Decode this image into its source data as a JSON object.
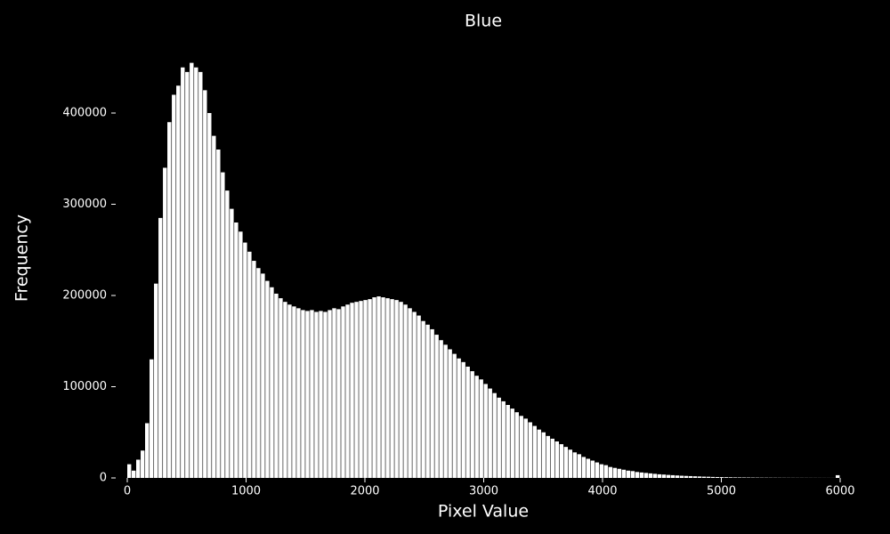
{
  "chart_data": {
    "type": "histogram",
    "title": "Blue",
    "xlabel": "Pixel Value",
    "ylabel": "Frequency",
    "color": "#ffffff",
    "background": "#000000",
    "bins": [
      0,
      37.5,
      75,
      112.5,
      150,
      187.5,
      225,
      262.5,
      300,
      337.5,
      375,
      412.5,
      450,
      487.5,
      525,
      562.5,
      600,
      637.5,
      675,
      712.5,
      750,
      787.5,
      825,
      862.5,
      900,
      937.5,
      975,
      1012.5,
      1050,
      1087.5,
      1125,
      1162.5,
      1200,
      1237.5,
      1275,
      1312.5,
      1350,
      1387.5,
      1425,
      1462.5,
      1500,
      1537.5,
      1575,
      1612.5,
      1650,
      1687.5,
      1725,
      1762.5,
      1800,
      1837.5,
      1875,
      1912.5,
      1950,
      1987.5,
      2025,
      2062.5,
      2100,
      2137.5,
      2175,
      2212.5,
      2250,
      2287.5,
      2325,
      2362.5,
      2400,
      2437.5,
      2475,
      2512.5,
      2550,
      2587.5,
      2625,
      2662.5,
      2700,
      2737.5,
      2775,
      2812.5,
      2850,
      2887.5,
      2925,
      2962.5,
      3000,
      3037.5,
      3075,
      3112.5,
      3150,
      3187.5,
      3225,
      3262.5,
      3300,
      3337.5,
      3375,
      3412.5,
      3450,
      3487.5,
      3525,
      3562.5,
      3600,
      3637.5,
      3675,
      3712.5,
      3750,
      3787.5,
      3825,
      3862.5,
      3900,
      3937.5,
      3975,
      4012.5,
      4050,
      4087.5,
      4125,
      4162.5,
      4200,
      4237.5,
      4275,
      4312.5,
      4350,
      4387.5,
      4425,
      4462.5,
      4500,
      4537.5,
      4575,
      4612.5,
      4650,
      4687.5,
      4725,
      4762.5,
      4800,
      4837.5,
      4875,
      4912.5,
      4950,
      4987.5,
      5025,
      5062.5,
      5100,
      5137.5,
      5175,
      5212.5,
      5250,
      5287.5,
      5325,
      5362.5,
      5400,
      5437.5,
      5475,
      5512.5,
      5550,
      5587.5,
      5625,
      5662.5,
      5700,
      5737.5,
      5775,
      5812.5,
      5850,
      5887.5,
      5925,
      5962.5,
      6000
    ],
    "counts": [
      15000,
      8000,
      20000,
      30000,
      60000,
      130000,
      213000,
      285000,
      340000,
      390000,
      420000,
      430000,
      450000,
      445000,
      455000,
      450000,
      445000,
      425000,
      400000,
      375000,
      360000,
      335000,
      315000,
      295000,
      280000,
      270000,
      258000,
      248000,
      238000,
      230000,
      224000,
      216000,
      209000,
      202000,
      197000,
      193000,
      190000,
      188000,
      186000,
      184000,
      183000,
      184000,
      182000,
      183000,
      182000,
      184000,
      186000,
      185000,
      188000,
      190000,
      192000,
      193000,
      194000,
      195000,
      196000,
      198000,
      199000,
      198000,
      197000,
      196000,
      195000,
      193000,
      190000,
      186000,
      182000,
      178000,
      172000,
      168000,
      163000,
      157000,
      151000,
      146000,
      141000,
      136000,
      131000,
      127000,
      122000,
      117000,
      112000,
      108000,
      103000,
      98000,
      93000,
      88000,
      84000,
      80000,
      76000,
      72000,
      68000,
      65000,
      61000,
      57000,
      53000,
      50000,
      46000,
      43000,
      40000,
      37000,
      34000,
      31000,
      28000,
      26000,
      23000,
      21000,
      19000,
      17000,
      15000,
      14000,
      12000,
      11000,
      10000,
      9000,
      8000,
      7500,
      6500,
      6000,
      5500,
      5000,
      4500,
      4000,
      3700,
      3300,
      3000,
      2700,
      2400,
      2200,
      2000,
      1800,
      1600,
      1400,
      1300,
      1100,
      1000,
      900,
      800,
      700,
      600,
      550,
      500,
      450,
      400,
      350,
      300,
      280,
      250,
      230,
      200,
      180,
      160,
      150,
      140,
      130,
      120,
      110,
      100,
      90,
      80,
      70,
      60,
      3000
    ],
    "xlim": [
      0,
      6000
    ],
    "xticks": [
      0,
      1000,
      2000,
      3000,
      4000,
      5000,
      6000
    ],
    "ylim": [
      0,
      480000
    ],
    "yticks": [
      0,
      100000,
      200000,
      300000,
      400000
    ]
  }
}
